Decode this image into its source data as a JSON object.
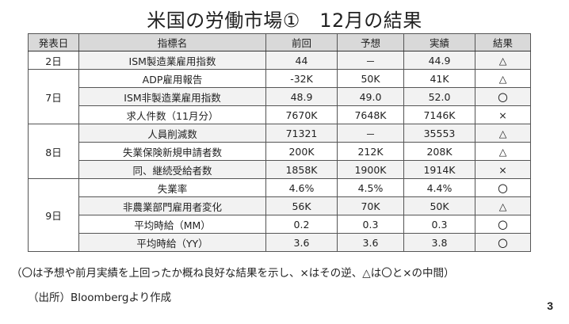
{
  "slide": {
    "title": "米国の労働市場①　12月の結果",
    "note": "（〇は予想や前月実績を上回ったか概ね良好な結果を示し、×はその逆、△は〇と×の中間）",
    "source": "（出所）Bloombergより作成",
    "page_number": "3"
  },
  "table": {
    "headers": [
      "発表日",
      "指標名",
      "前回",
      "予想",
      "実績",
      "結果"
    ],
    "groups": [
      {
        "date": "2日",
        "rows": [
          {
            "indicator": "ISM製造業雇用指数",
            "prev": "44",
            "forecast": "－",
            "actual": "44.9",
            "result": "△"
          }
        ]
      },
      {
        "date": "7日",
        "rows": [
          {
            "indicator": "ADP雇用報告",
            "prev": "-32K",
            "forecast": "50K",
            "actual": "41K",
            "result": "△"
          },
          {
            "indicator": "ISM非製造業雇用指数",
            "prev": "48.9",
            "forecast": "49.0",
            "actual": "52.0",
            "result": "〇"
          },
          {
            "indicator": "求人件数（11月分）",
            "prev": "7670K",
            "forecast": "7648K",
            "actual": "7146K",
            "result": "×"
          }
        ]
      },
      {
        "date": "8日",
        "rows": [
          {
            "indicator": "人員削減数",
            "prev": "71321",
            "forecast": "－",
            "actual": "35553",
            "result": "△"
          },
          {
            "indicator": "失業保険新規申請者数",
            "prev": "200K",
            "forecast": "212K",
            "actual": "208K",
            "result": "△"
          },
          {
            "indicator": "同、継続受給者数",
            "prev": "1858K",
            "forecast": "1900K",
            "actual": "1914K",
            "result": "×"
          }
        ]
      },
      {
        "date": "9日",
        "rows": [
          {
            "indicator": "失業率",
            "prev": "4.6%",
            "forecast": "4.5%",
            "actual": "4.4%",
            "result": "〇"
          },
          {
            "indicator": "非農業部門雇用者変化",
            "prev": "56K",
            "forecast": "70K",
            "actual": "50K",
            "result": "△"
          },
          {
            "indicator": "平均時給（MM）",
            "prev": "0.2",
            "forecast": "0.3",
            "actual": "0.3",
            "result": "〇"
          },
          {
            "indicator": "平均時給（YY）",
            "prev": "3.6",
            "forecast": "3.6",
            "actual": "3.8",
            "result": "〇"
          }
        ]
      }
    ]
  }
}
